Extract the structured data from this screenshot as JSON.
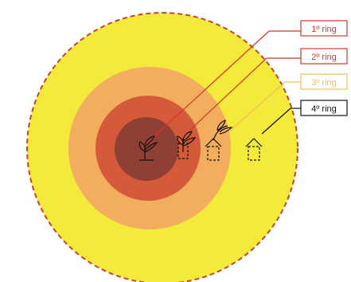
{
  "rings": [
    {
      "name": "1º ring",
      "label": "1º ring",
      "color": "#d8352a",
      "fill": "#8f3f33"
    },
    {
      "name": "2º ring",
      "label": "2º ring",
      "color": "#d8352a",
      "fill": "#d45a39"
    },
    {
      "name": "3º ring",
      "label": "3º ring",
      "color": "#f2bf5a",
      "fill": "#f2ad5f"
    },
    {
      "name": "4º ring",
      "label": "4º ring",
      "color": "#111111",
      "fill": "#f3ea3b"
    }
  ],
  "icons": [
    "tree-icon",
    "tree-house-icon",
    "tree-house-icon",
    "house-icon",
    "house-icon"
  ],
  "colors": {
    "outer_border": "#c4442e",
    "leader_red": "#d8352a",
    "leader_orange": "#f2bf5a",
    "leader_dark": "#111111",
    "icon_stroke": "#111111"
  }
}
